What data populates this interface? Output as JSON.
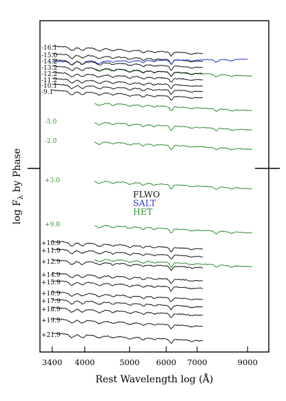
{
  "chart_data": {
    "type": "line",
    "xlabel": "Rest Wavelength log (Å)",
    "ylabel": "log F",
    "ylabel_sub": "λ",
    "ylabel_rest": " by Phase",
    "x_scale": "log",
    "xlim": [
      3200,
      10000
    ],
    "x_ticks": [
      {
        "value": 3400,
        "label": "3400"
      },
      {
        "value": 4000,
        "label": "4000"
      },
      {
        "value": 5000,
        "label": "5000"
      },
      {
        "value": 6000,
        "label": "6000"
      },
      {
        "value": 7000,
        "label": "7000"
      },
      {
        "value": 9000,
        "label": "9000"
      }
    ],
    "legend": [
      {
        "name": "FLWO",
        "color": "#111111"
      },
      {
        "name": "SALT",
        "color": "#2233cc"
      },
      {
        "name": "HET",
        "color": "#2e8b2e"
      }
    ],
    "colors": {
      "FLWO": "#111111",
      "SALT": "#2233cc",
      "HET": "#2e8b2e"
    },
    "series": [
      {
        "phase": "-16.1",
        "instrument": "FLWO",
        "x_range": [
          3400,
          7200
        ]
      },
      {
        "phase": "-15.0",
        "instrument": "FLWO",
        "x_range": [
          3400,
          7200
        ]
      },
      {
        "phase": "-15.0",
        "instrument": "SALT",
        "x_range": [
          3400,
          9000
        ]
      },
      {
        "phase": "-14.2",
        "instrument": "FLWO",
        "x_range": [
          3400,
          7200
        ]
      },
      {
        "phase": "-14.2",
        "instrument": "HET",
        "x_range": [
          4200,
          9200
        ]
      },
      {
        "phase": "-13.2",
        "instrument": "FLWO",
        "x_range": [
          3400,
          7200
        ]
      },
      {
        "phase": "-12.2",
        "instrument": "FLWO",
        "x_range": [
          3400,
          7200
        ]
      },
      {
        "phase": "-11.2",
        "instrument": "FLWO",
        "x_range": [
          3400,
          7200
        ]
      },
      {
        "phase": "-10.1",
        "instrument": "FLWO",
        "x_range": [
          3400,
          7200
        ]
      },
      {
        "phase": "-9.1",
        "instrument": "FLWO",
        "x_range": [
          3400,
          7200
        ]
      },
      {
        "phase": "-9.1",
        "instrument": "HET",
        "x_range": [
          4200,
          9200
        ]
      },
      {
        "phase": "-5.0",
        "instrument": "HET",
        "x_range": [
          4200,
          9200
        ]
      },
      {
        "phase": "-2.0",
        "instrument": "HET",
        "x_range": [
          4200,
          9200
        ]
      },
      {
        "phase": "+3.0",
        "instrument": "HET",
        "x_range": [
          4200,
          9200
        ]
      },
      {
        "phase": "+9.0",
        "instrument": "HET",
        "x_range": [
          4200,
          9200
        ]
      },
      {
        "phase": "+10.9",
        "instrument": "FLWO",
        "x_range": [
          3400,
          7200
        ]
      },
      {
        "phase": "+11.9",
        "instrument": "FLWO",
        "x_range": [
          3400,
          7200
        ]
      },
      {
        "phase": "+12.9",
        "instrument": "FLWO",
        "x_range": [
          3400,
          7200
        ]
      },
      {
        "phase": "+12.9",
        "instrument": "HET",
        "x_range": [
          4200,
          9200
        ]
      },
      {
        "phase": "+14.9",
        "instrument": "FLWO",
        "x_range": [
          3400,
          7200
        ]
      },
      {
        "phase": "+15.9",
        "instrument": "FLWO",
        "x_range": [
          3400,
          7200
        ]
      },
      {
        "phase": "+16.9",
        "instrument": "FLWO",
        "x_range": [
          3400,
          7200
        ]
      },
      {
        "phase": "+17.9",
        "instrument": "FLWO",
        "x_range": [
          3400,
          7200
        ]
      },
      {
        "phase": "+18.9",
        "instrument": "FLWO",
        "x_range": [
          3400,
          7200
        ]
      },
      {
        "phase": "+19.9",
        "instrument": "FLWO",
        "x_range": [
          3400,
          7200
        ]
      },
      {
        "phase": "+21.9",
        "instrument": "FLWO",
        "x_range": [
          3400,
          7200
        ]
      }
    ]
  }
}
